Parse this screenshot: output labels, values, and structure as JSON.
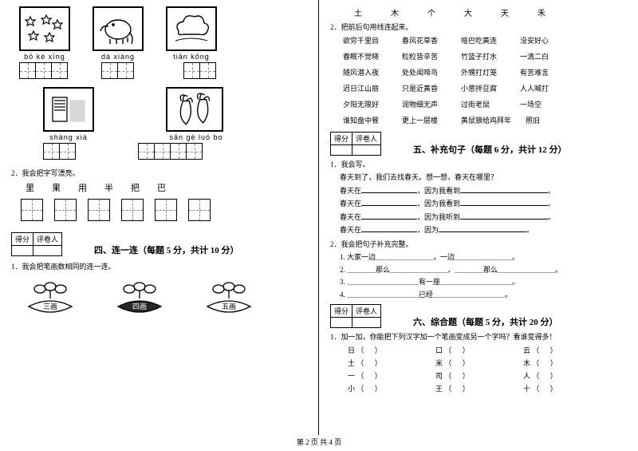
{
  "footer": "第 2 页  共 4 页",
  "left": {
    "row1": {
      "images": [
        "✦✦✦",
        "🐘",
        "☁"
      ],
      "pinyin": [
        "bō  kè  xīng",
        "dà   xiàng",
        "tiān    kōng"
      ],
      "grid_cells": [
        3,
        2,
        2
      ]
    },
    "row2": {
      "images": [
        "▥▥",
        "🥕🥕"
      ],
      "pinyin": [
        "shàng  xià",
        "sān  gè  luó  bo"
      ],
      "grid_cells": [
        2,
        4
      ]
    },
    "q2_label": "2．我会把字写漂亮。",
    "q2_chars": [
      "里",
      "果",
      "用",
      "半",
      "把",
      "巴"
    ],
    "score_cells": [
      "得分",
      "评卷人"
    ],
    "section4_title": "四、连一连（每题 5 分，共计 10 分）",
    "section4_q1": "1．我会把笔画数相同的连一连。",
    "flowers": [
      "三画",
      "四画",
      "五画"
    ]
  },
  "right": {
    "top_chars": [
      "土",
      "木",
      "个",
      "大",
      "天",
      "禾"
    ],
    "q2_label": "2．把前后句用线连起来。",
    "match_rows": [
      [
        "欲穷千里目",
        "春风花草香",
        "哑巴吃黄连",
        "没安好心"
      ],
      [
        "春眠不觉晓",
        "粒粒皆辛苦",
        "竹篮子打水",
        "一清二白"
      ],
      [
        "随风潜入夜",
        "处处闻啼鸟",
        "外甥打灯笼",
        "有苦难言"
      ],
      [
        "迟日江山丽",
        "只是近黄昏",
        "小葱拌豆腐",
        "人人喊打"
      ],
      [
        "夕阳无限好",
        "润物细无声",
        "过街老鼠",
        "一场空"
      ],
      [
        "谁知盘中餐",
        "更上一层楼",
        "黄鼠狼给鸡拜年",
        "照旧"
      ]
    ],
    "score_cells": [
      "得分",
      "评卷人"
    ],
    "section5_title": "五、补充句子（每题 6 分，共计 12 分）",
    "s5_q1": "1．我会写。",
    "s5_intro": "春天到了，我们去找春天。想一想，春天在哪里？",
    "s5_lines": [
      {
        "a": "春天在",
        "b": "，因为我看到"
      },
      {
        "a": "春天在",
        "b": "，因为我看到"
      },
      {
        "a": "春天在",
        "b": "，因为我听到"
      },
      {
        "a": "春天在",
        "b": "，因为"
      }
    ],
    "s5_q2": "2．我会把句子补充完整。",
    "s5_q2_lines": [
      "1. 大家一边＿＿＿＿＿＿＿＿，一边＿＿＿＿＿＿＿＿。",
      "2. ＿＿＿＿那么＿＿＿＿＿＿＿＿，＿＿＿＿那么＿＿＿＿＿＿＿＿。",
      "3. ＿＿＿＿＿＿＿＿＿＿有一座＿＿＿＿＿＿＿＿＿＿。",
      "4. ＿＿＿＿＿＿＿＿＿＿已经＿＿＿＿＿＿＿＿＿＿。"
    ],
    "section6_title": "六、综合题（每题 5 分，共计 20 分）",
    "s6_q1": "1．加一加，你能把下列汉字加一个笔画变成另一个字吗？看谁变得多！",
    "s6_rows": [
      [
        [
          "日",
          "(",
          " )"
        ],
        [
          "口",
          "(",
          " )"
        ],
        [
          "云",
          "(",
          " )"
        ]
      ],
      [
        [
          "土",
          "(",
          " )"
        ],
        [
          "米",
          "(",
          " )"
        ],
        [
          "木",
          "(",
          " )"
        ]
      ],
      [
        [
          "一",
          "(",
          " )"
        ],
        [
          "司",
          "(",
          " )"
        ],
        [
          "人",
          "(",
          " )"
        ]
      ],
      [
        [
          "小",
          "(",
          " )"
        ],
        [
          "王",
          "(",
          " )"
        ],
        [
          "十",
          "(",
          " )"
        ]
      ]
    ]
  }
}
